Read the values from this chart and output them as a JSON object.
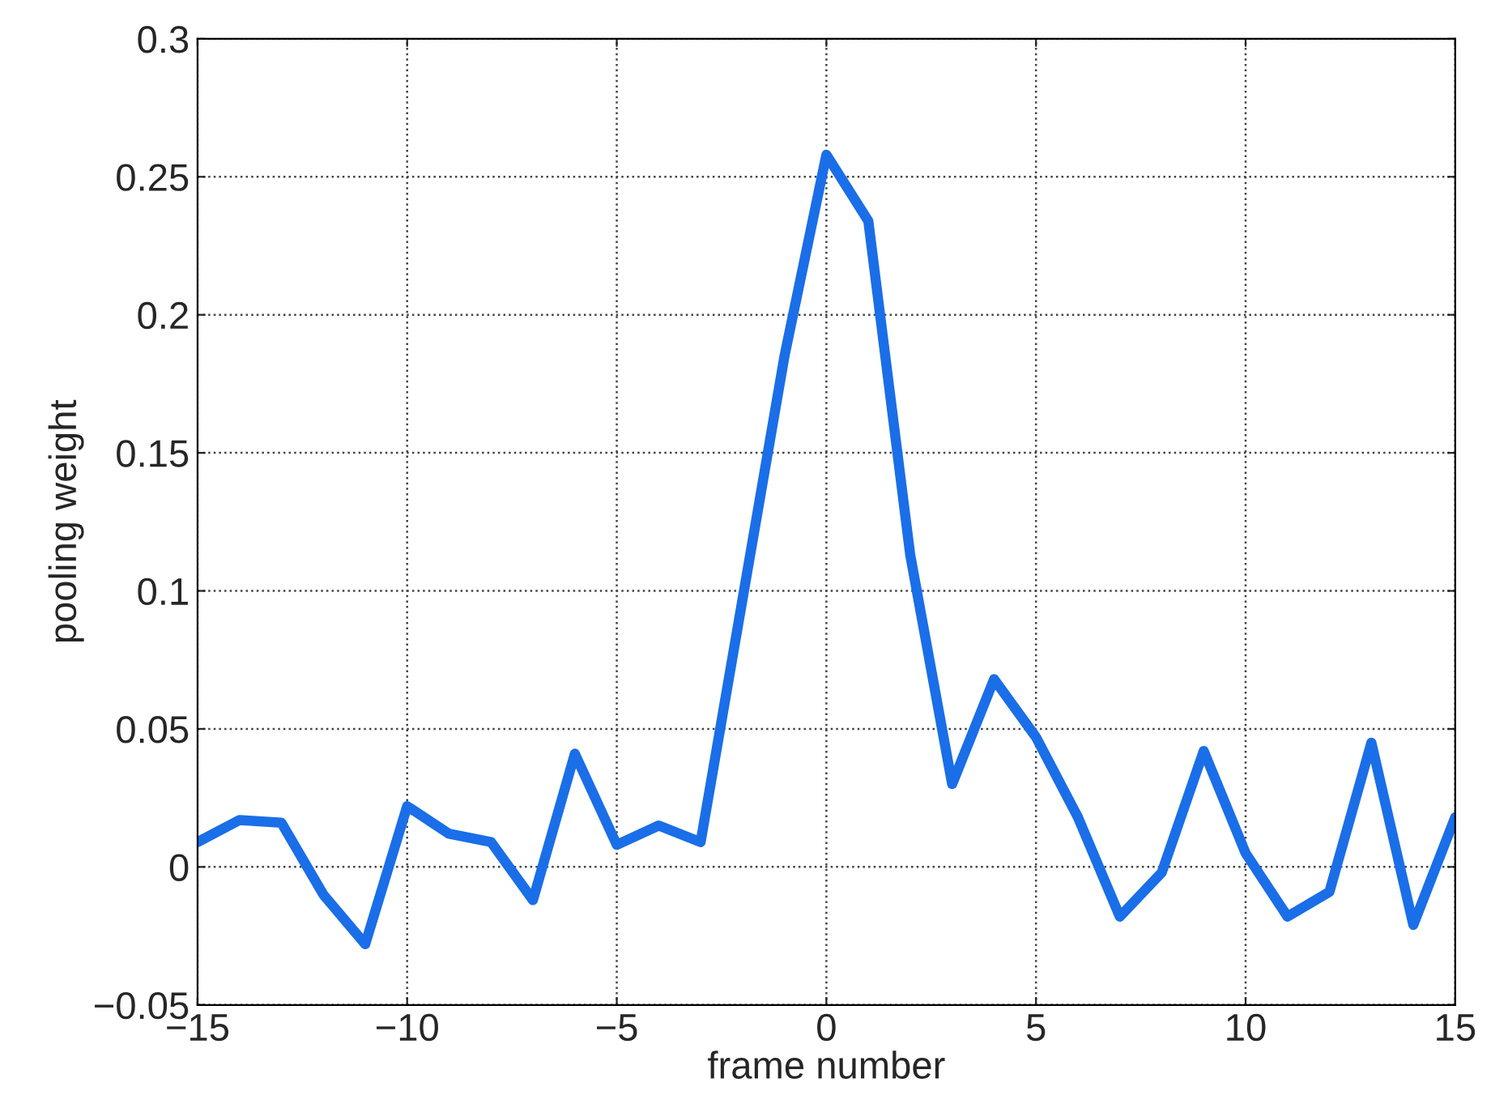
{
  "chart_data": {
    "type": "line",
    "xlabel": "frame number",
    "ylabel": "pooling weight",
    "x": [
      -15,
      -14,
      -13,
      -12,
      -11,
      -10,
      -9,
      -8,
      -7,
      -6,
      -5,
      -4,
      -3,
      -2,
      -1,
      0,
      1,
      2,
      3,
      4,
      5,
      6,
      7,
      8,
      9,
      10,
      11,
      12,
      13,
      14,
      15
    ],
    "series": [
      {
        "color": "#1a6ee8",
        "values": [
          0.009,
          0.017,
          0.016,
          -0.01,
          -0.028,
          0.022,
          0.012,
          0.009,
          -0.012,
          0.041,
          0.008,
          0.015,
          0.009,
          0.097,
          0.185,
          0.258,
          0.234,
          0.113,
          0.03,
          0.068,
          0.047,
          0.018,
          -0.018,
          -0.002,
          0.042,
          0.005,
          -0.018,
          -0.009,
          0.045,
          -0.021,
          0.018
        ]
      }
    ],
    "xlim": [
      -15,
      15
    ],
    "xticks": [
      {
        "value": -15,
        "label": "−15"
      },
      {
        "value": -10,
        "label": "−10"
      },
      {
        "value": -5,
        "label": "−5"
      },
      0,
      5,
      10,
      15
    ],
    "ylim": [
      -0.05,
      0.3
    ],
    "yticks": [
      {
        "value": -0.05,
        "label": "−0.05"
      },
      0,
      0.05,
      0.1,
      0.15,
      0.2,
      0.25,
      0.3
    ],
    "grid": true,
    "marker": "none",
    "line_style": "solid"
  }
}
